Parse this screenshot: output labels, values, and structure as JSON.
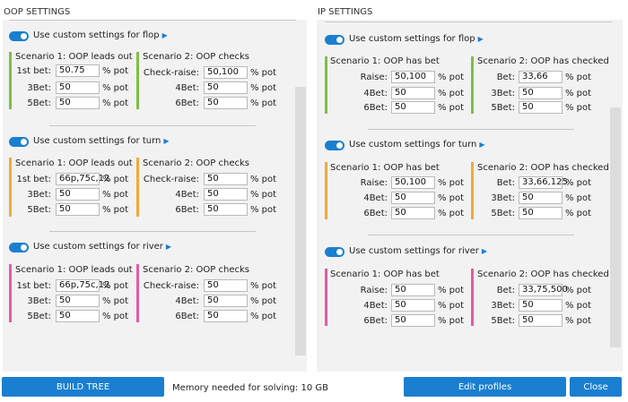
{
  "oop": {
    "title": "OOP SETTINGS",
    "sections": [
      {
        "toggle_label": "Use custom settings for flop",
        "s1": {
          "title": "Scenario 1: OOP leads out",
          "rows": [
            {
              "label": "1st bet:",
              "value": "50.75",
              "unit": "% pot"
            },
            {
              "label": "3Bet:",
              "value": "50",
              "unit": "% pot"
            },
            {
              "label": "5Bet:",
              "value": "50",
              "unit": "% pot"
            }
          ]
        },
        "s2": {
          "title": "Scenario 2: OOP checks",
          "rows": [
            {
              "label": "Check-raise:",
              "value": "50,100",
              "unit": "% pot"
            },
            {
              "label": "4Bet:",
              "value": "50",
              "unit": "% pot"
            },
            {
              "label": "6Bet:",
              "value": "50",
              "unit": "% pot"
            }
          ]
        }
      },
      {
        "toggle_label": "Use custom settings for turn",
        "s1": {
          "title": "Scenario 1: OOP leads out",
          "rows": [
            {
              "label": "1st bet:",
              "value": "66p,75c,12",
              "unit": "% pot"
            },
            {
              "label": "3Bet:",
              "value": "50",
              "unit": "% pot"
            },
            {
              "label": "5Bet:",
              "value": "50",
              "unit": "% pot"
            }
          ]
        },
        "s2": {
          "title": "Scenario 2: OOP checks",
          "rows": [
            {
              "label": "Check-raise:",
              "value": "50",
              "unit": "% pot"
            },
            {
              "label": "4Bet:",
              "value": "50",
              "unit": "% pot"
            },
            {
              "label": "6Bet:",
              "value": "50",
              "unit": "% pot"
            }
          ]
        }
      },
      {
        "toggle_label": "Use custom settings for river",
        "s1": {
          "title": "Scenario 1: OOP leads out",
          "rows": [
            {
              "label": "1st bet:",
              "value": "66p,75c,12",
              "unit": "% pot"
            },
            {
              "label": "3Bet:",
              "value": "50",
              "unit": "% pot"
            },
            {
              "label": "5Bet:",
              "value": "50",
              "unit": "% pot"
            }
          ]
        },
        "s2": {
          "title": "Scenario 2: OOP checks",
          "rows": [
            {
              "label": "Check-raise:",
              "value": "50",
              "unit": "% pot"
            },
            {
              "label": "4Bet:",
              "value": "50",
              "unit": "% pot"
            },
            {
              "label": "6Bet:",
              "value": "50",
              "unit": "% pot"
            }
          ]
        }
      }
    ]
  },
  "ip": {
    "title": "IP SETTINGS",
    "sections": [
      {
        "toggle_label": "Use custom settings for flop",
        "s1": {
          "title": "Scenario 1: OOP has bet",
          "rows": [
            {
              "label": "Raise:",
              "value": "50,100",
              "unit": "% pot"
            },
            {
              "label": "4Bet:",
              "value": "50",
              "unit": "% pot"
            },
            {
              "label": "6Bet:",
              "value": "50",
              "unit": "% pot"
            }
          ]
        },
        "s2": {
          "title": "Scenario 2: OOP has checked",
          "rows": [
            {
              "label": "Bet:",
              "value": "33,66",
              "unit": "% pot"
            },
            {
              "label": "3Bet:",
              "value": "50",
              "unit": "% pot"
            },
            {
              "label": "5Bet:",
              "value": "50",
              "unit": "% pot"
            }
          ]
        }
      },
      {
        "toggle_label": "Use custom settings for turn",
        "s1": {
          "title": "Scenario 1: OOP has bet",
          "rows": [
            {
              "label": "Raise:",
              "value": "50,100",
              "unit": "% pot"
            },
            {
              "label": "4Bet:",
              "value": "50",
              "unit": "% pot"
            },
            {
              "label": "6Bet:",
              "value": "50",
              "unit": "% pot"
            }
          ]
        },
        "s2": {
          "title": "Scenario 2: OOP has checked",
          "rows": [
            {
              "label": "Bet:",
              "value": "33,66,125",
              "unit": "% pot"
            },
            {
              "label": "3Bet:",
              "value": "50",
              "unit": "% pot"
            },
            {
              "label": "5Bet:",
              "value": "50",
              "unit": "% pot"
            }
          ]
        }
      },
      {
        "toggle_label": "Use custom settings for river",
        "s1": {
          "title": "Scenario 1: OOP has bet",
          "rows": [
            {
              "label": "Raise:",
              "value": "50",
              "unit": "% pot"
            },
            {
              "label": "4Bet:",
              "value": "50",
              "unit": "% pot"
            },
            {
              "label": "6Bet:",
              "value": "50",
              "unit": "% pot"
            }
          ]
        },
        "s2": {
          "title": "Scenario 2: OOP has checked",
          "rows": [
            {
              "label": "Bet:",
              "value": "33,75,500",
              "unit": "% pot"
            },
            {
              "label": "3Bet:",
              "value": "50",
              "unit": "% pot"
            },
            {
              "label": "5Bet:",
              "value": "50",
              "unit": "% pot"
            }
          ]
        }
      }
    ]
  },
  "footer": {
    "build_label": "BUILD TREE",
    "memory_text": "Memory needed for solving: 10 GB",
    "edit_label": "Edit profiles",
    "close_label": "Close"
  },
  "colors": {
    "accent": "#1a7fd0",
    "flop": "#7cc043",
    "turn": "#f2a93b",
    "river": "#e65aa8"
  },
  "icons": {
    "toggle": "toggle-switch-icon",
    "expand": "triangle-right-icon"
  }
}
